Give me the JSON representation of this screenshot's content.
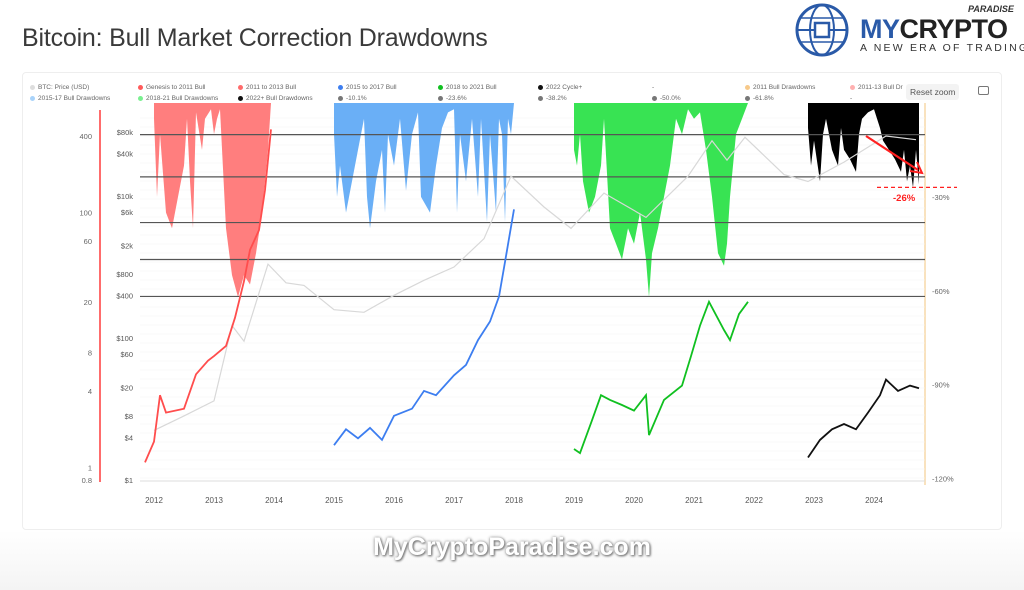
{
  "header": {
    "title": "Bitcoin: Bull Market Correction Drawdowns"
  },
  "logo": {
    "brand_a": "MY",
    "brand_b": "CRYPTO",
    "brand_sup": "PARADISE",
    "tagline": "A NEW ERA OF TRADING",
    "icon": "globe-circuit-icon"
  },
  "toolbar": {
    "reset_zoom": "Reset zoom",
    "camera_icon": "camera-icon"
  },
  "watermark": "MyCryptoParadise.com",
  "colors": {
    "price": "#d8d8d8",
    "genesis": "#ff6b6b",
    "bull_2011_2013": "#ff4d4d",
    "bull_2015_2017": "#3d7ef0",
    "bull_2018_2021": "#10c020",
    "cycle_2022": "#111111",
    "dd_2011_13": "#ff7070",
    "dd_2015_17": "#5aa6f5",
    "dd_2018_21": "#22e040",
    "dd_2022": "#000000",
    "fib": "#555555",
    "annotation": "#ff2020",
    "left_axis_line": "#ff3b3b",
    "right_axis_line": "#f7d9a8"
  },
  "chart_data": {
    "type": "line",
    "legend": [
      {
        "label": "BTC: Price (USD)",
        "color": "#dddddd"
      },
      {
        "label": "Genesis to 2011 Bull",
        "color": "#ff5a5a"
      },
      {
        "label": "2011 to 2013 Bull",
        "color": "#ff6b6b"
      },
      {
        "label": "2015 to 2017 Bull",
        "color": "#3d7ef0"
      },
      {
        "label": "2018 to 2021 Bull",
        "color": "#10c020"
      },
      {
        "label": "2022 Cycle+",
        "color": "#111111"
      },
      {
        "label": "-",
        "color": ""
      },
      {
        "label": "2011 Bull Drawdowns",
        "color": "#f7c98a"
      },
      {
        "label": "2011-13 Bull Dr",
        "color": "#ffb0b0"
      },
      {
        "label": "2015-17 Bull Drawdowns",
        "color": "#a9d3fa"
      },
      {
        "label": "2018-21 Bull Drawdowns",
        "color": "#7af090"
      },
      {
        "label": "2022+ Bull Drawdowns",
        "color": "#111111"
      },
      {
        "label": "-10.1%",
        "color": "#777777"
      },
      {
        "label": "-23.6%",
        "color": "#777777"
      },
      {
        "label": "-38.2%",
        "color": "#777777"
      },
      {
        "label": "-50.0%",
        "color": "#777777"
      },
      {
        "label": "-61.8%",
        "color": "#777777"
      },
      {
        "label": "-",
        "color": ""
      }
    ],
    "legend_placement": "top",
    "x_ticks": [
      "2012",
      "2013",
      "2014",
      "2015",
      "2016",
      "2017",
      "2018",
      "2019",
      "2020",
      "2021",
      "2022",
      "2023",
      "2024"
    ],
    "xlim": [
      2011.8,
      2024.9
    ],
    "y_multiple_axis": {
      "scale": "log",
      "ticks": [
        "400",
        "100",
        "60",
        "20",
        "8",
        "4",
        "1",
        "0.8"
      ],
      "tick_values": [
        400,
        100,
        60,
        20,
        8,
        4,
        1,
        0.8
      ],
      "range": [
        0.8,
        400
      ]
    },
    "y_price_axis": {
      "scale": "log",
      "ticks": [
        "$80k",
        "$40k",
        "$10k",
        "$6k",
        "$2k",
        "$800",
        "$400",
        "$100",
        "$60",
        "$20",
        "$8",
        "$4",
        "$1"
      ],
      "tick_values": [
        80000,
        40000,
        10000,
        6000,
        2000,
        800,
        400,
        100,
        60,
        20,
        8,
        4,
        1
      ],
      "range": [
        1,
        120000
      ]
    },
    "y_drawdown_axis": {
      "ticks": [
        "-30%",
        "-60%",
        "-90%",
        "-120%"
      ],
      "tick_values": [
        -30,
        -60,
        -90,
        -120
      ],
      "range": [
        -120,
        0
      ]
    },
    "fib_levels": [
      -10.1,
      -23.6,
      -38.2,
      -50.0,
      -61.8
    ],
    "price_series": {
      "name": "BTC: Price (USD)",
      "points": [
        [
          2012,
          5
        ],
        [
          2012.5,
          8
        ],
        [
          2013,
          13
        ],
        [
          2013.3,
          150
        ],
        [
          2013.5,
          90
        ],
        [
          2013.9,
          1100
        ],
        [
          2014.2,
          600
        ],
        [
          2014.5,
          550
        ],
        [
          2015,
          250
        ],
        [
          2015.5,
          230
        ],
        [
          2016,
          400
        ],
        [
          2016.5,
          650
        ],
        [
          2017,
          1000
        ],
        [
          2017.5,
          2500
        ],
        [
          2017.95,
          19000
        ],
        [
          2018.5,
          7000
        ],
        [
          2018.95,
          3500
        ],
        [
          2019.5,
          11000
        ],
        [
          2020.2,
          5000
        ],
        [
          2020.9,
          19000
        ],
        [
          2021.3,
          60000
        ],
        [
          2021.55,
          32000
        ],
        [
          2021.85,
          67000
        ],
        [
          2022.5,
          20000
        ],
        [
          2022.9,
          16000
        ],
        [
          2023.5,
          30000
        ],
        [
          2024.2,
          70000
        ],
        [
          2024.7,
          62000
        ]
      ]
    },
    "cycle_series": [
      {
        "name": "2011 to 2013 Bull",
        "axis": "multiple",
        "points": [
          [
            2011.85,
            1.1
          ],
          [
            2012,
            1.6
          ],
          [
            2012.1,
            3.7
          ],
          [
            2012.2,
            2.7
          ],
          [
            2012.5,
            2.9
          ],
          [
            2012.7,
            5.4
          ],
          [
            2012.9,
            6.9
          ],
          [
            2013,
            7.5
          ],
          [
            2013.2,
            9
          ],
          [
            2013.35,
            15
          ],
          [
            2013.5,
            29
          ],
          [
            2013.6,
            51
          ],
          [
            2013.75,
            73
          ],
          [
            2013.85,
            150
          ],
          [
            2013.95,
            450
          ]
        ]
      },
      {
        "name": "2015 to 2017 Bull",
        "axis": "multiple",
        "points": [
          [
            2015,
            1.5
          ],
          [
            2015.2,
            2.0
          ],
          [
            2015.4,
            1.7
          ],
          [
            2015.6,
            2.05
          ],
          [
            2015.8,
            1.65
          ],
          [
            2016,
            2.55
          ],
          [
            2016.3,
            2.9
          ],
          [
            2016.5,
            4.0
          ],
          [
            2016.7,
            3.7
          ],
          [
            2017,
            5.3
          ],
          [
            2017.2,
            6.4
          ],
          [
            2017.4,
            10
          ],
          [
            2017.6,
            14
          ],
          [
            2017.75,
            22
          ],
          [
            2017.85,
            41
          ],
          [
            2018,
            106
          ]
        ]
      },
      {
        "name": "2018 to 2021 Bull",
        "axis": "multiple",
        "points": [
          [
            2019,
            1.4
          ],
          [
            2019.1,
            1.3
          ],
          [
            2019.3,
            2.35
          ],
          [
            2019.45,
            3.7
          ],
          [
            2019.6,
            3.4
          ],
          [
            2019.8,
            3.1
          ],
          [
            2020,
            2.8
          ],
          [
            2020.2,
            3.7
          ],
          [
            2020.25,
            1.8
          ],
          [
            2020.5,
            3.4
          ],
          [
            2020.8,
            4.4
          ],
          [
            2020.95,
            7.5
          ],
          [
            2021.1,
            13
          ],
          [
            2021.25,
            20
          ],
          [
            2021.5,
            12
          ],
          [
            2021.6,
            10
          ],
          [
            2021.75,
            16
          ],
          [
            2021.9,
            20
          ]
        ]
      },
      {
        "name": "2022 Cycle+",
        "axis": "multiple",
        "points": [
          [
            2022.9,
            1.2
          ],
          [
            2023.1,
            1.65
          ],
          [
            2023.3,
            2.0
          ],
          [
            2023.5,
            2.2
          ],
          [
            2023.7,
            2.0
          ],
          [
            2023.9,
            2.7
          ],
          [
            2024.1,
            3.7
          ],
          [
            2024.2,
            4.9
          ],
          [
            2024.4,
            4.0
          ],
          [
            2024.6,
            4.4
          ],
          [
            2024.75,
            4.2
          ]
        ]
      }
    ],
    "drawdown_series": [
      {
        "name": "2011-13 Bull Drawdowns",
        "points": [
          [
            2012,
            -5
          ],
          [
            2012.05,
            -30
          ],
          [
            2012.1,
            -10
          ],
          [
            2012.2,
            -35
          ],
          [
            2012.3,
            -40
          ],
          [
            2012.4,
            -30
          ],
          [
            2012.5,
            -20
          ],
          [
            2012.55,
            -5
          ],
          [
            2012.6,
            -25
          ],
          [
            2012.65,
            -40
          ],
          [
            2012.7,
            -3
          ],
          [
            2012.8,
            -15
          ],
          [
            2012.85,
            -5
          ],
          [
            2012.95,
            -2
          ],
          [
            2013,
            -10
          ],
          [
            2013.05,
            -5
          ],
          [
            2013.1,
            -2
          ],
          [
            2013.2,
            -40
          ],
          [
            2013.3,
            -55
          ],
          [
            2013.4,
            -62
          ],
          [
            2013.5,
            -55
          ],
          [
            2013.6,
            -58
          ],
          [
            2013.7,
            -48
          ],
          [
            2013.8,
            -35
          ],
          [
            2013.9,
            -15
          ],
          [
            2013.95,
            0
          ]
        ]
      },
      {
        "name": "2015-17 Bull Drawdowns",
        "points": [
          [
            2015,
            -10
          ],
          [
            2015.05,
            -30
          ],
          [
            2015.1,
            -20
          ],
          [
            2015.2,
            -35
          ],
          [
            2015.3,
            -25
          ],
          [
            2015.4,
            -15
          ],
          [
            2015.5,
            -5
          ],
          [
            2015.55,
            -30
          ],
          [
            2015.6,
            -40
          ],
          [
            2015.7,
            -25
          ],
          [
            2015.8,
            -15
          ],
          [
            2015.85,
            -35
          ],
          [
            2015.9,
            -10
          ],
          [
            2016,
            -20
          ],
          [
            2016.1,
            -5
          ],
          [
            2016.2,
            -28
          ],
          [
            2016.3,
            -10
          ],
          [
            2016.4,
            -3
          ],
          [
            2016.45,
            -30
          ],
          [
            2016.6,
            -35
          ],
          [
            2016.7,
            -20
          ],
          [
            2016.8,
            -8
          ],
          [
            2016.9,
            -3
          ],
          [
            2017,
            -2
          ],
          [
            2017.05,
            -35
          ],
          [
            2017.1,
            -10
          ],
          [
            2017.2,
            -25
          ],
          [
            2017.3,
            -5
          ],
          [
            2017.4,
            -30
          ],
          [
            2017.45,
            -5
          ],
          [
            2017.55,
            -38
          ],
          [
            2017.6,
            -10
          ],
          [
            2017.7,
            -35
          ],
          [
            2017.75,
            -5
          ],
          [
            2017.8,
            -10
          ],
          [
            2017.85,
            -38
          ],
          [
            2017.9,
            -5
          ],
          [
            2017.95,
            -10
          ],
          [
            2018,
            0
          ]
        ]
      },
      {
        "name": "2018-21 Bull Drawdowns",
        "points": [
          [
            2019,
            -15
          ],
          [
            2019.05,
            -20
          ],
          [
            2019.1,
            -10
          ],
          [
            2019.15,
            -25
          ],
          [
            2019.25,
            -35
          ],
          [
            2019.35,
            -30
          ],
          [
            2019.45,
            -20
          ],
          [
            2019.5,
            -5
          ],
          [
            2019.6,
            -40
          ],
          [
            2019.7,
            -45
          ],
          [
            2019.8,
            -50
          ],
          [
            2019.9,
            -40
          ],
          [
            2020,
            -45
          ],
          [
            2020.1,
            -35
          ],
          [
            2020.2,
            -50
          ],
          [
            2020.25,
            -62
          ],
          [
            2020.3,
            -48
          ],
          [
            2020.4,
            -40
          ],
          [
            2020.5,
            -30
          ],
          [
            2020.6,
            -20
          ],
          [
            2020.7,
            -5
          ],
          [
            2020.8,
            -10
          ],
          [
            2020.9,
            -2
          ],
          [
            2021,
            -5
          ],
          [
            2021.1,
            -3
          ],
          [
            2021.2,
            -15
          ],
          [
            2021.3,
            -30
          ],
          [
            2021.4,
            -48
          ],
          [
            2021.5,
            -52
          ],
          [
            2021.55,
            -45
          ],
          [
            2021.6,
            -30
          ],
          [
            2021.7,
            -10
          ],
          [
            2021.8,
            -5
          ],
          [
            2021.9,
            0
          ]
        ]
      },
      {
        "name": "2022+ Bull Drawdowns",
        "points": [
          [
            2022.9,
            -8
          ],
          [
            2022.95,
            -20
          ],
          [
            2023,
            -12
          ],
          [
            2023.1,
            -25
          ],
          [
            2023.15,
            -10
          ],
          [
            2023.2,
            -5
          ],
          [
            2023.3,
            -15
          ],
          [
            2023.4,
            -20
          ],
          [
            2023.45,
            -8
          ],
          [
            2023.5,
            -15
          ],
          [
            2023.6,
            -18
          ],
          [
            2023.7,
            -22
          ],
          [
            2023.75,
            -10
          ],
          [
            2023.8,
            -5
          ],
          [
            2023.9,
            -3
          ],
          [
            2024,
            -2
          ],
          [
            2024.1,
            -8
          ],
          [
            2024.15,
            -12
          ],
          [
            2024.25,
            -15
          ],
          [
            2024.35,
            -18
          ],
          [
            2024.45,
            -22
          ],
          [
            2024.5,
            -15
          ],
          [
            2024.55,
            -25
          ],
          [
            2024.6,
            -20
          ],
          [
            2024.65,
            -27
          ],
          [
            2024.7,
            -15
          ],
          [
            2024.75,
            -26
          ]
        ]
      }
    ],
    "annotations": [
      {
        "text": "-26%",
        "level": -26,
        "type": "dashed-line-with-arrow"
      }
    ],
    "grid": false
  }
}
